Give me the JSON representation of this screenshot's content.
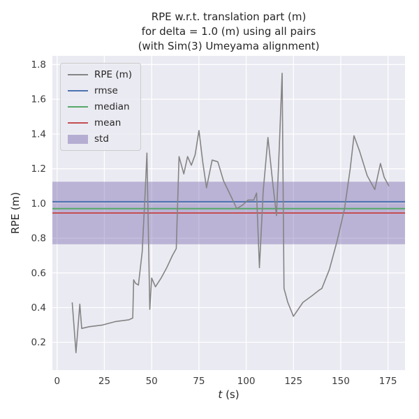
{
  "chart_data": {
    "type": "line",
    "title_lines": [
      "RPE w.r.t. translation part (m)",
      "for delta = 1.0 (m) using all pairs",
      "(with Sim(3) Umeyama alignment)"
    ],
    "xlabel": "t (s)",
    "xlabel_var": "t",
    "xlabel_unit": " (s)",
    "ylabel": "RPE (m)",
    "xlim": [
      -2.5,
      184
    ],
    "ylim": [
      0.04,
      1.85
    ],
    "xticks": [
      0,
      25,
      50,
      75,
      100,
      125,
      150,
      175
    ],
    "yticks": [
      0.2,
      0.4,
      0.6,
      0.8,
      1.0,
      1.2,
      1.4,
      1.6,
      1.8
    ],
    "grid": true,
    "legend_position": "upper-left",
    "colors": {
      "rpe": "#848484",
      "rmse": "#4c72b0",
      "median": "#55a868",
      "mean": "#c44e52",
      "std": "#8172b2",
      "plot_bg": "#eaeaf2",
      "grid": "#ffffff"
    },
    "stats": {
      "rmse": 1.01,
      "median": 0.97,
      "mean": 0.945,
      "std_low": 0.765,
      "std_high": 1.125
    },
    "series": [
      {
        "name": "RPE (m)",
        "x": [
          8,
          10,
          12,
          13,
          17,
          24,
          31,
          38,
          40,
          40.5,
          41.5,
          43,
          45,
          46.5,
          47.5,
          49,
          50,
          52,
          55,
          58,
          61,
          63,
          64.5,
          67,
          69,
          71,
          73,
          75,
          77,
          79,
          82,
          85,
          88,
          92,
          95,
          98,
          101,
          104,
          105.5,
          107,
          109,
          111.5,
          114,
          116,
          117.5,
          119,
          120,
          122,
          125,
          130,
          135,
          138.5,
          140,
          144,
          148,
          152,
          155,
          157,
          160,
          164,
          168,
          171,
          173,
          175.5
        ],
        "y": [
          0.43,
          0.14,
          0.42,
          0.28,
          0.29,
          0.3,
          0.32,
          0.33,
          0.34,
          0.56,
          0.54,
          0.53,
          0.72,
          1.05,
          1.29,
          0.39,
          0.57,
          0.52,
          0.57,
          0.63,
          0.7,
          0.74,
          1.27,
          1.17,
          1.27,
          1.22,
          1.28,
          1.42,
          1.24,
          1.09,
          1.25,
          1.24,
          1.13,
          1.04,
          0.97,
          0.99,
          1.02,
          1.02,
          1.06,
          0.63,
          1.07,
          1.38,
          1.12,
          0.93,
          1.32,
          1.75,
          0.51,
          0.43,
          0.35,
          0.43,
          0.47,
          0.5,
          0.51,
          0.62,
          0.78,
          0.97,
          1.2,
          1.39,
          1.3,
          1.16,
          1.08,
          1.23,
          1.15,
          1.1
        ]
      }
    ],
    "legend": [
      {
        "label": "RPE (m)",
        "color": "#848484",
        "type": "line"
      },
      {
        "label": "rmse",
        "color": "#4c72b0",
        "type": "line"
      },
      {
        "label": "median",
        "color": "#55a868",
        "type": "line"
      },
      {
        "label": "mean",
        "color": "#c44e52",
        "type": "line"
      },
      {
        "label": "std",
        "color": "#8172b2",
        "type": "patch"
      }
    ]
  }
}
